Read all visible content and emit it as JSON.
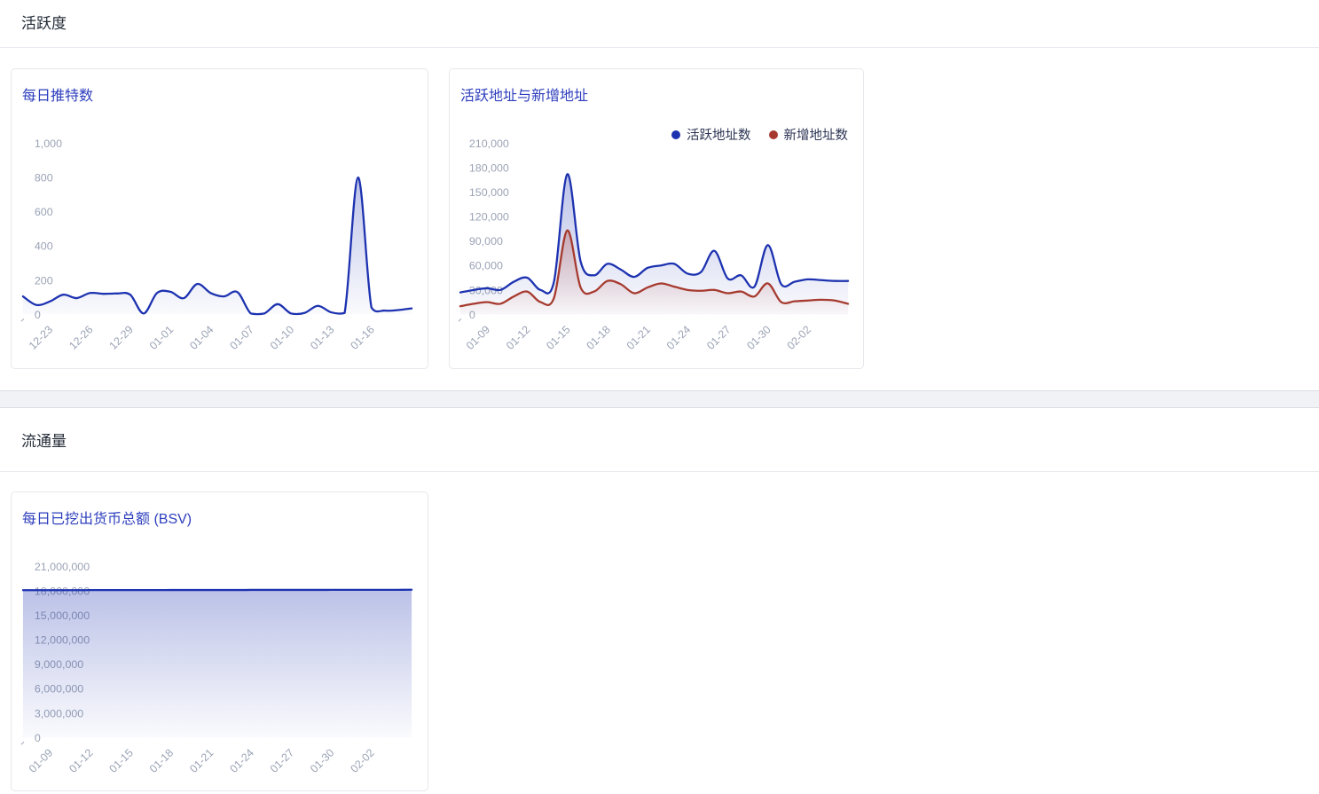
{
  "sections": {
    "activity": {
      "title": "活跃度"
    },
    "circulation": {
      "title": "流通量"
    }
  },
  "colors": {
    "primary_blue": "#1d32b0",
    "brick_red": "#a63a2e",
    "chart_title_blue": "#2d3ebd",
    "axis_label_gray": "#9aa3b5",
    "section_title": "#242c38",
    "legend_text": "#2b3352"
  },
  "chart_data": [
    {
      "type": "area",
      "title": "每日推特数",
      "legend": false,
      "grid": false,
      "ylim": [
        0,
        1000
      ],
      "y_ticks": [
        0,
        200,
        400,
        600,
        800,
        1000
      ],
      "y_tick_labels": [
        "0",
        "200",
        "400",
        "600",
        "800",
        "1,000"
      ],
      "x": [
        "12-21",
        "12-22",
        "12-23",
        "12-24",
        "12-25",
        "12-26",
        "12-27",
        "12-28",
        "12-29",
        "12-30",
        "12-31",
        "01-01",
        "01-02",
        "01-03",
        "01-04",
        "01-05",
        "01-06",
        "01-07",
        "01-08",
        "01-09",
        "01-10",
        "01-11",
        "01-12",
        "01-13",
        "01-14",
        "01-15",
        "01-16",
        "01-17",
        "01-18",
        "01-19"
      ],
      "x_tick_labels": [
        "12-23",
        "12-26",
        "12-29",
        "01-01",
        "01-04",
        "01-07",
        "01-10",
        "01-13",
        "01-16"
      ],
      "series": [
        {
          "name": "每日推特数",
          "color": "#1d32b0",
          "values": [
            105,
            55,
            75,
            115,
            95,
            125,
            120,
            122,
            115,
            5,
            125,
            132,
            95,
            178,
            125,
            105,
            130,
            5,
            5,
            60,
            5,
            8,
            50,
            12,
            8,
            800,
            40,
            22,
            25,
            35
          ]
        }
      ]
    },
    {
      "type": "area",
      "title": "活跃地址与新增地址",
      "legend": true,
      "legend_position": "top-right",
      "grid": false,
      "ylim": [
        0,
        210000
      ],
      "y_ticks": [
        0,
        30000,
        60000,
        90000,
        120000,
        150000,
        180000,
        210000
      ],
      "y_tick_labels": [
        "0",
        "30,000",
        "60,000",
        "90,000",
        "120,000",
        "150,000",
        "180,000",
        "210,000"
      ],
      "x": [
        "01-07",
        "01-08",
        "01-09",
        "01-10",
        "01-11",
        "01-12",
        "01-13",
        "01-14",
        "01-15",
        "01-16",
        "01-17",
        "01-18",
        "01-19",
        "01-20",
        "01-21",
        "01-22",
        "01-23",
        "01-24",
        "01-25",
        "01-26",
        "01-27",
        "01-28",
        "01-29",
        "01-30",
        "01-31",
        "02-01",
        "02-02",
        "02-03",
        "02-04",
        "02-05"
      ],
      "x_tick_labels": [
        "01-09",
        "01-12",
        "01-15",
        "01-18",
        "01-21",
        "01-24",
        "01-27",
        "01-30",
        "02-02"
      ],
      "series": [
        {
          "name": "活跃地址数",
          "color": "#1d32b0",
          "values": [
            27000,
            30000,
            32000,
            30000,
            40000,
            45000,
            30000,
            40000,
            172000,
            65000,
            48000,
            62000,
            55000,
            46000,
            57000,
            60000,
            62000,
            50000,
            52000,
            78000,
            44000,
            48000,
            34000,
            85000,
            37000,
            40000,
            43000,
            42000,
            41000,
            41000
          ]
        },
        {
          "name": "新增地址数",
          "color": "#a63a2e",
          "values": [
            10000,
            13000,
            15000,
            13000,
            22000,
            28000,
            15000,
            20000,
            103000,
            33000,
            28000,
            41000,
            37000,
            26000,
            33000,
            38000,
            34000,
            30000,
            29000,
            30000,
            26000,
            28000,
            22000,
            38000,
            15000,
            16000,
            17000,
            18000,
            17000,
            13000
          ]
        }
      ]
    },
    {
      "type": "area",
      "title": "每日已挖出货币总额 (BSV)",
      "legend": false,
      "grid": false,
      "ylim": [
        0,
        21000000
      ],
      "y_ticks": [
        0,
        3000000,
        6000000,
        9000000,
        12000000,
        15000000,
        18000000,
        21000000
      ],
      "y_tick_labels": [
        "0",
        "3,000,000",
        "6,000,000",
        "9,000,000",
        "12,000,000",
        "15,000,000",
        "18,000,000",
        "21,000,000"
      ],
      "x": [
        "01-07",
        "01-08",
        "01-09",
        "01-10",
        "01-11",
        "01-12",
        "01-13",
        "01-14",
        "01-15",
        "01-16",
        "01-17",
        "01-18",
        "01-19",
        "01-20",
        "01-21",
        "01-22",
        "01-23",
        "01-24",
        "01-25",
        "01-26",
        "01-27",
        "01-28",
        "01-29",
        "01-30",
        "01-31",
        "02-01",
        "02-02",
        "02-03",
        "02-04",
        "02-05"
      ],
      "x_tick_labels": [
        "01-09",
        "01-12",
        "01-15",
        "01-18",
        "01-21",
        "01-24",
        "01-27",
        "01-30",
        "02-02"
      ],
      "series": [
        {
          "name": "每日已挖出货币总额",
          "color": "#1d32b0",
          "values": [
            18085000,
            18086800,
            18088600,
            18090400,
            18092200,
            18094000,
            18095800,
            18097600,
            18099400,
            18101200,
            18103000,
            18104800,
            18106600,
            18108400,
            18110200,
            18112000,
            18113800,
            18115600,
            18117400,
            18119200,
            18121000,
            18122800,
            18124600,
            18126400,
            18128200,
            18130000,
            18131800,
            18133600,
            18135400,
            18137200
          ]
        }
      ]
    }
  ]
}
